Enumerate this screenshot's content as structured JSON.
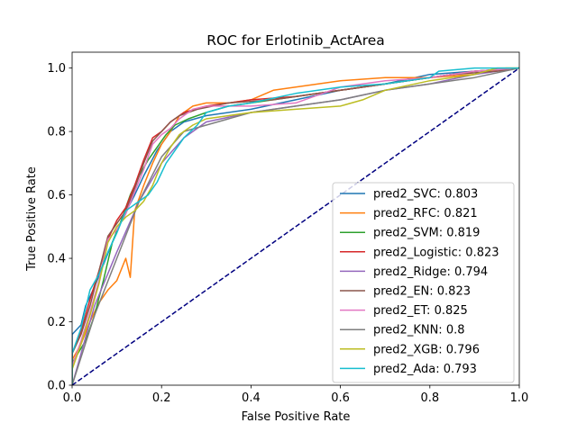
{
  "chart_data": {
    "type": "line",
    "title": "ROC for Erlotinib_ActArea",
    "xlabel": "False Positive Rate",
    "ylabel": "True Positive Rate",
    "xlim": [
      0.0,
      1.0
    ],
    "ylim": [
      0.0,
      1.05
    ],
    "x_ticks": [
      "0.0",
      "0.2",
      "0.4",
      "0.6",
      "0.8",
      "1.0"
    ],
    "y_ticks": [
      "0.0",
      "0.2",
      "0.4",
      "0.6",
      "0.8",
      "1.0"
    ],
    "grid": false,
    "legend_position": "lower right",
    "reference_line": {
      "x": [
        0,
        1
      ],
      "y": [
        0,
        1
      ],
      "color": "#000080",
      "style": "dashed"
    },
    "series": [
      {
        "name": "pred2_SVC: 0.803",
        "color": "#1f77b4",
        "x": [
          0,
          0,
          0.02,
          0.03,
          0.05,
          0.07,
          0.09,
          0.11,
          0.14,
          0.16,
          0.19,
          0.22,
          0.25,
          0.3,
          0.4,
          0.5,
          0.6,
          0.7,
          0.8,
          0.9,
          1.0
        ],
        "y": [
          0,
          0.16,
          0.19,
          0.25,
          0.31,
          0.38,
          0.45,
          0.52,
          0.6,
          0.66,
          0.74,
          0.8,
          0.83,
          0.85,
          0.87,
          0.9,
          0.93,
          0.95,
          0.98,
          0.99,
          1.0
        ]
      },
      {
        "name": "pred2_RFC: 0.821",
        "color": "#ff7f0e",
        "x": [
          0,
          0,
          0.02,
          0.04,
          0.06,
          0.08,
          0.1,
          0.12,
          0.13,
          0.14,
          0.16,
          0.18,
          0.2,
          0.22,
          0.24,
          0.27,
          0.3,
          0.35,
          0.4,
          0.45,
          0.5,
          0.6,
          0.7,
          0.8,
          0.9,
          0.97,
          1.0
        ],
        "y": [
          0,
          0.08,
          0.13,
          0.2,
          0.26,
          0.3,
          0.33,
          0.4,
          0.34,
          0.55,
          0.63,
          0.7,
          0.76,
          0.8,
          0.85,
          0.88,
          0.89,
          0.89,
          0.9,
          0.93,
          0.94,
          0.96,
          0.97,
          0.97,
          0.98,
          1.0,
          1.0
        ]
      },
      {
        "name": "pred2_SVM: 0.819",
        "color": "#2ca02c",
        "x": [
          0,
          0,
          0.03,
          0.05,
          0.07,
          0.09,
          0.11,
          0.13,
          0.15,
          0.17,
          0.19,
          0.21,
          0.23,
          0.26,
          0.3,
          0.35,
          0.4,
          0.5,
          0.6,
          0.7,
          0.8,
          0.9,
          1.0
        ],
        "y": [
          0,
          0.07,
          0.14,
          0.22,
          0.33,
          0.45,
          0.52,
          0.6,
          0.66,
          0.71,
          0.75,
          0.79,
          0.82,
          0.84,
          0.86,
          0.88,
          0.89,
          0.91,
          0.93,
          0.95,
          0.97,
          0.99,
          1.0
        ]
      },
      {
        "name": "pred2_Logistic: 0.823",
        "color": "#d62728",
        "x": [
          0,
          0,
          0.02,
          0.04,
          0.06,
          0.08,
          0.1,
          0.12,
          0.14,
          0.16,
          0.18,
          0.2,
          0.22,
          0.25,
          0.3,
          0.4,
          0.5,
          0.6,
          0.7,
          0.8,
          0.9,
          1.0
        ],
        "y": [
          0,
          0.1,
          0.17,
          0.27,
          0.36,
          0.46,
          0.52,
          0.56,
          0.63,
          0.71,
          0.78,
          0.8,
          0.83,
          0.86,
          0.88,
          0.9,
          0.91,
          0.93,
          0.95,
          0.97,
          0.99,
          1.0
        ]
      },
      {
        "name": "pred2_Ridge: 0.794",
        "color": "#9467bd",
        "x": [
          0,
          0.05,
          0.1,
          0.15,
          0.2,
          0.25,
          0.3,
          0.4,
          0.5,
          0.6,
          0.7,
          0.8,
          0.9,
          1.0
        ],
        "y": [
          0,
          0.25,
          0.42,
          0.58,
          0.7,
          0.78,
          0.83,
          0.86,
          0.88,
          0.9,
          0.93,
          0.95,
          0.98,
          1.0
        ]
      },
      {
        "name": "pred2_EN: 0.823",
        "color": "#8c564b",
        "x": [
          0,
          0,
          0.02,
          0.04,
          0.06,
          0.08,
          0.1,
          0.12,
          0.14,
          0.16,
          0.18,
          0.2,
          0.22,
          0.24,
          0.28,
          0.35,
          0.45,
          0.55,
          0.65,
          0.75,
          0.85,
          0.95,
          1.0
        ],
        "y": [
          0,
          0.1,
          0.16,
          0.25,
          0.36,
          0.47,
          0.51,
          0.55,
          0.62,
          0.7,
          0.77,
          0.8,
          0.83,
          0.85,
          0.87,
          0.89,
          0.9,
          0.92,
          0.94,
          0.96,
          0.98,
          0.99,
          1.0
        ]
      },
      {
        "name": "pred2_ET: 0.825",
        "color": "#e377c2",
        "x": [
          0,
          0,
          0.02,
          0.04,
          0.06,
          0.08,
          0.1,
          0.12,
          0.14,
          0.16,
          0.18,
          0.2,
          0.22,
          0.24,
          0.27,
          0.3,
          0.4,
          0.5,
          0.6,
          0.65,
          0.7,
          0.8,
          0.9,
          1.0
        ],
        "y": [
          0,
          0.06,
          0.14,
          0.23,
          0.33,
          0.46,
          0.49,
          0.54,
          0.61,
          0.68,
          0.76,
          0.79,
          0.81,
          0.84,
          0.87,
          0.88,
          0.88,
          0.89,
          0.94,
          0.95,
          0.96,
          0.97,
          0.99,
          1.0
        ]
      },
      {
        "name": "pred2_KNN: 0.8",
        "color": "#7f7f7f",
        "x": [
          0,
          0.05,
          0.1,
          0.15,
          0.2,
          0.25,
          0.3,
          0.35,
          0.4,
          0.5,
          0.6,
          0.7,
          0.8,
          0.9,
          1.0
        ],
        "y": [
          0,
          0.22,
          0.4,
          0.58,
          0.72,
          0.8,
          0.82,
          0.84,
          0.86,
          0.88,
          0.9,
          0.93,
          0.95,
          0.97,
          1.0
        ]
      },
      {
        "name": "pred2_XGB: 0.796",
        "color": "#bcbd22",
        "x": [
          0,
          0,
          0.02,
          0.04,
          0.06,
          0.08,
          0.1,
          0.12,
          0.14,
          0.16,
          0.18,
          0.2,
          0.22,
          0.24,
          0.27,
          0.3,
          0.35,
          0.4,
          0.5,
          0.6,
          0.65,
          0.7,
          0.8,
          0.9,
          0.95,
          1.0
        ],
        "y": [
          0,
          0.05,
          0.13,
          0.22,
          0.32,
          0.45,
          0.5,
          0.53,
          0.55,
          0.58,
          0.63,
          0.7,
          0.75,
          0.79,
          0.82,
          0.84,
          0.85,
          0.86,
          0.87,
          0.88,
          0.9,
          0.93,
          0.96,
          0.98,
          1.0,
          1.0
        ]
      },
      {
        "name": "pred2_Ada: 0.793",
        "color": "#17becf",
        "x": [
          0,
          0,
          0.02,
          0.04,
          0.06,
          0.08,
          0.1,
          0.12,
          0.14,
          0.17,
          0.19,
          0.21,
          0.23,
          0.25,
          0.28,
          0.3,
          0.35,
          0.4,
          0.5,
          0.6,
          0.7,
          0.8,
          0.82,
          0.9,
          1.0
        ],
        "y": [
          0,
          0.1,
          0.18,
          0.3,
          0.35,
          0.42,
          0.48,
          0.55,
          0.57,
          0.6,
          0.64,
          0.7,
          0.74,
          0.78,
          0.82,
          0.86,
          0.88,
          0.89,
          0.92,
          0.94,
          0.95,
          0.97,
          0.99,
          1.0,
          1.0
        ]
      }
    ]
  }
}
